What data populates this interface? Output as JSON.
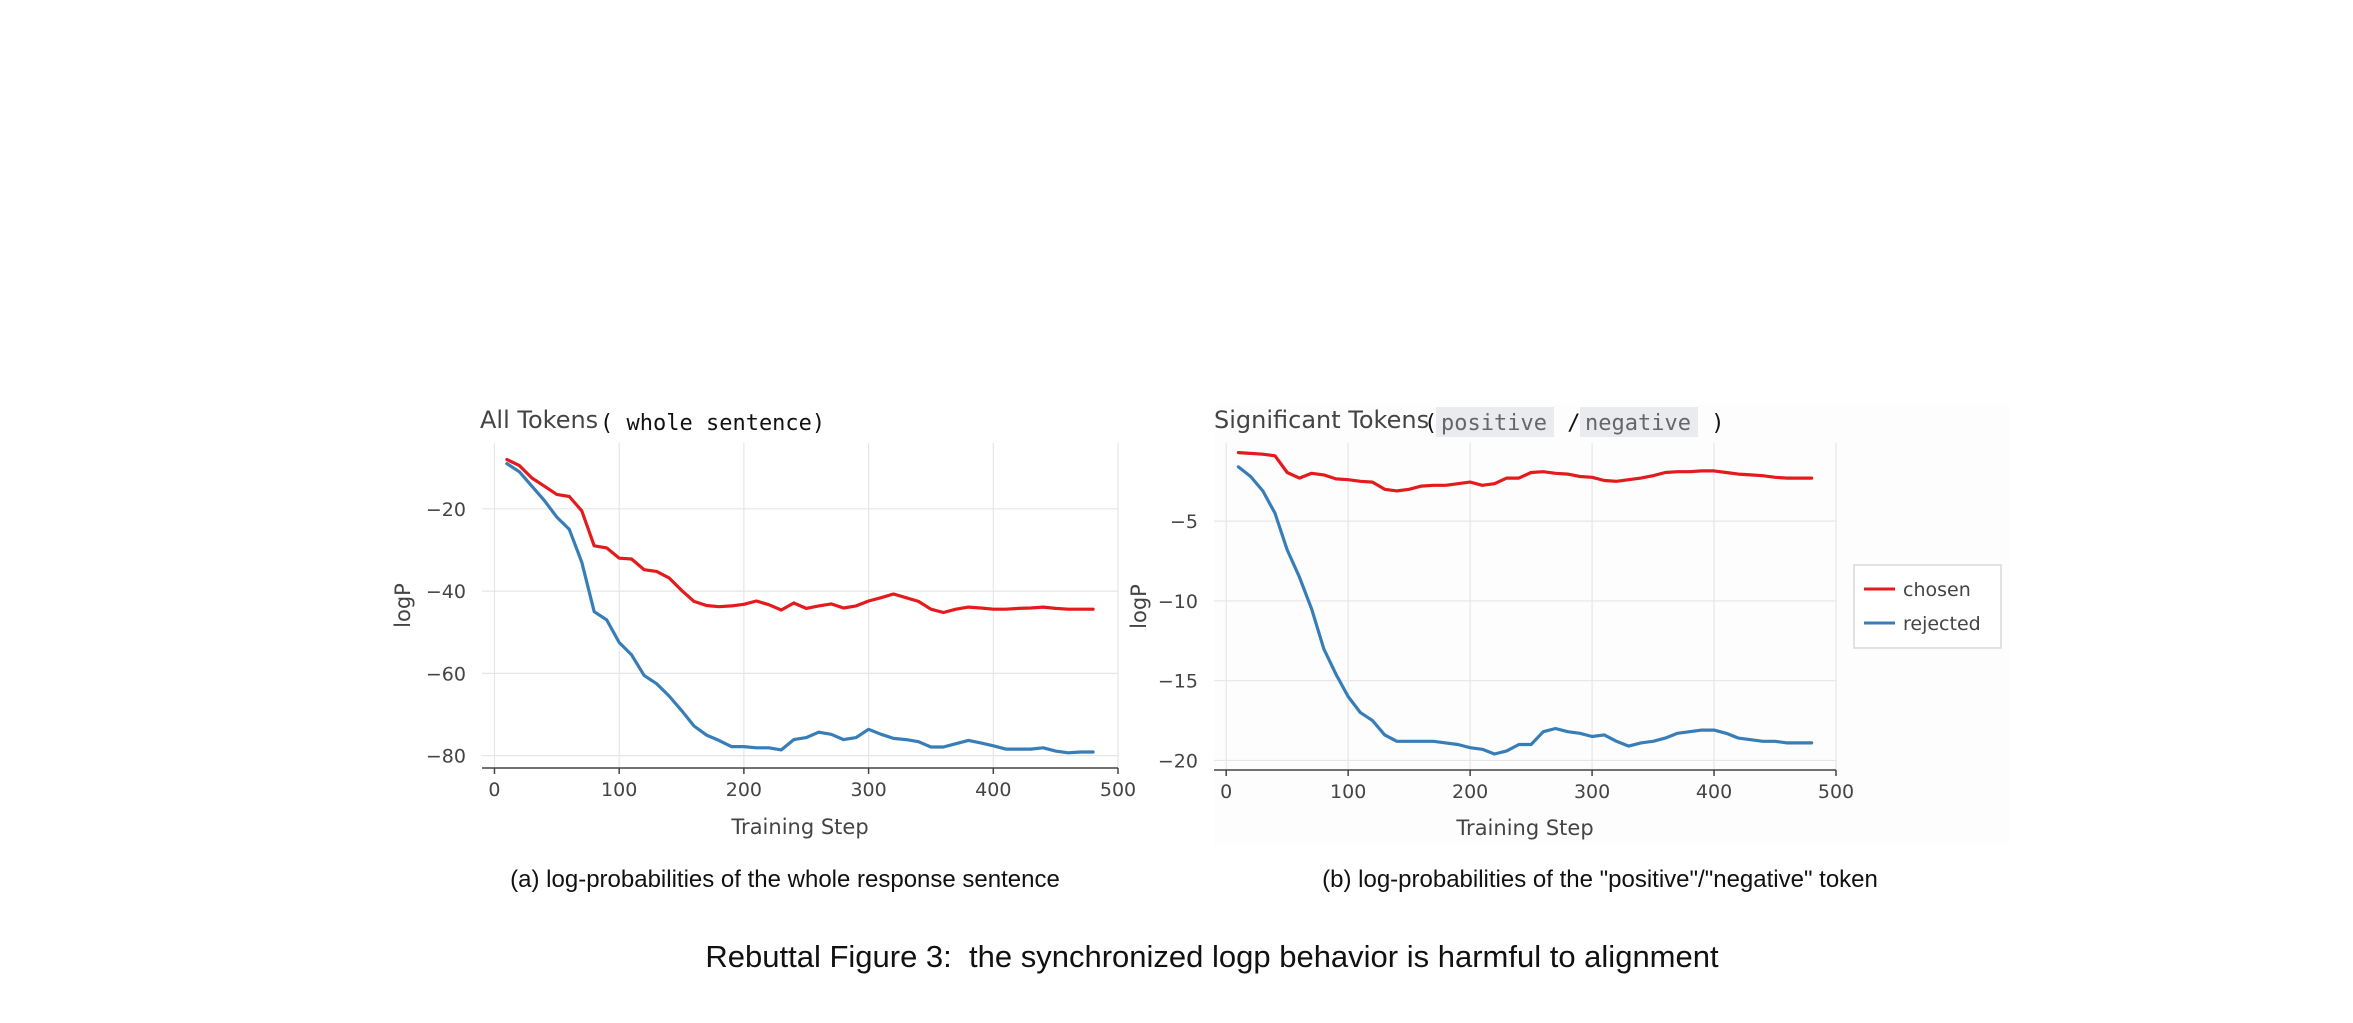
{
  "figure_title": "Rebuttal Figure 3:  the synchronized logp behavior is harmful to alignment",
  "colors": {
    "chosen": "#e41a1c",
    "rejected": "#377eb8"
  },
  "chart_data": [
    {
      "type": "line",
      "title": "All Tokens",
      "title_mono": "( whole sentence)",
      "caption": "(a) log-probabilities of the whole response sentence",
      "xlabel": "Training Step",
      "ylabel": "logP",
      "xlim": [
        -10,
        500
      ],
      "ylim": [
        -83,
        -4
      ],
      "xticks": [
        0,
        100,
        200,
        300,
        400,
        500
      ],
      "xtick_labels": [
        "0",
        "100",
        "200",
        "300",
        "400",
        "500"
      ],
      "yticks": [
        -20,
        -40,
        -60,
        -80
      ],
      "ytick_labels": [
        "−20",
        "−40",
        "−60",
        "−80"
      ],
      "grid": true,
      "legend": "none",
      "x": [
        10,
        20,
        30,
        40,
        50,
        60,
        70,
        80,
        90,
        100,
        110,
        120,
        130,
        140,
        150,
        160,
        170,
        180,
        190,
        200,
        210,
        220,
        230,
        240,
        250,
        260,
        270,
        280,
        290,
        300,
        310,
        320,
        330,
        340,
        350,
        360,
        370,
        380,
        390,
        400,
        410,
        420,
        430,
        440,
        450,
        460,
        470,
        480
      ],
      "series": [
        {
          "name": "chosen",
          "values": [
            -8,
            -9.5,
            -12.5,
            -14.5,
            -16.5,
            -17,
            -20.5,
            -29,
            -29.5,
            -32,
            -32.2,
            -34.8,
            -35.2,
            -36.8,
            -39.8,
            -42.5,
            -43.5,
            -43.8,
            -43.6,
            -43.2,
            -42.4,
            -43.3,
            -44.6,
            -42.9,
            -44.2,
            -43.6,
            -43.1,
            -44.1,
            -43.6,
            -42.4,
            -41.6,
            -40.7,
            -41.6,
            -42.5,
            -44.4,
            -45.2,
            -44.4,
            -43.9,
            -44.1,
            -44.4,
            -44.4,
            -44.2,
            -44.1,
            -43.9,
            -44.2,
            -44.4,
            -44.4,
            -44.4
          ]
        },
        {
          "name": "rejected",
          "values": [
            -9,
            -11,
            -14.5,
            -18,
            -22,
            -25,
            -33,
            -45,
            -47,
            -52.5,
            -55.5,
            -60.5,
            -62.5,
            -65.5,
            -69,
            -72.8,
            -75,
            -76.3,
            -77.8,
            -77.8,
            -78.1,
            -78.1,
            -78.6,
            -76.1,
            -75.6,
            -74.3,
            -74.8,
            -76.1,
            -75.6,
            -73.6,
            -74.8,
            -75.8,
            -76.1,
            -76.6,
            -77.9,
            -77.9,
            -77.1,
            -76.3,
            -76.9,
            -77.6,
            -78.4,
            -78.4,
            -78.4,
            -78.1,
            -78.9,
            -79.3,
            -79.1,
            -79.1
          ]
        }
      ]
    },
    {
      "type": "line",
      "title": "Significant Tokens",
      "title_paren_open": "(",
      "title_tag1": "positive",
      "title_sep": " / ",
      "title_tag2": "negative",
      "title_paren_close": " )",
      "caption": "(b) log-probabilities of the \"positive\"/\"negative\" token",
      "xlabel": "Training Step",
      "ylabel": "logP",
      "xlim": [
        -10,
        500
      ],
      "ylim": [
        -20.6,
        -0.1
      ],
      "xticks": [
        0,
        100,
        200,
        300,
        400,
        500
      ],
      "xtick_labels": [
        "0",
        "100",
        "200",
        "300",
        "400",
        "500"
      ],
      "yticks": [
        -5,
        -10,
        -15,
        -20
      ],
      "ytick_labels": [
        "−5",
        "−10",
        "−15",
        "−20"
      ],
      "grid": true,
      "legend": "right",
      "legend_entries": [
        "chosen",
        "rejected"
      ],
      "x": [
        10,
        20,
        30,
        40,
        50,
        60,
        70,
        80,
        90,
        100,
        110,
        120,
        130,
        140,
        150,
        160,
        170,
        180,
        190,
        200,
        210,
        220,
        230,
        240,
        250,
        260,
        270,
        280,
        290,
        300,
        310,
        320,
        330,
        340,
        350,
        360,
        370,
        380,
        390,
        400,
        410,
        420,
        430,
        440,
        450,
        460,
        470,
        480
      ],
      "series": [
        {
          "name": "chosen",
          "values": [
            -0.7,
            -0.75,
            -0.8,
            -0.9,
            -1.95,
            -2.3,
            -2.0,
            -2.1,
            -2.35,
            -2.4,
            -2.5,
            -2.55,
            -3.0,
            -3.1,
            -3.0,
            -2.8,
            -2.75,
            -2.75,
            -2.65,
            -2.55,
            -2.75,
            -2.65,
            -2.3,
            -2.3,
            -1.95,
            -1.9,
            -2.0,
            -2.05,
            -2.2,
            -2.25,
            -2.45,
            -2.5,
            -2.4,
            -2.3,
            -2.15,
            -1.95,
            -1.9,
            -1.9,
            -1.85,
            -1.85,
            -1.95,
            -2.05,
            -2.1,
            -2.15,
            -2.25,
            -2.3,
            -2.3,
            -2.3
          ]
        },
        {
          "name": "rejected",
          "values": [
            -1.6,
            -2.2,
            -3.1,
            -4.5,
            -6.8,
            -8.5,
            -10.5,
            -13.0,
            -14.6,
            -16.0,
            -17.0,
            -17.5,
            -18.4,
            -18.8,
            -18.8,
            -18.8,
            -18.8,
            -18.9,
            -19.0,
            -19.2,
            -19.3,
            -19.6,
            -19.4,
            -19.0,
            -19.0,
            -18.2,
            -18.0,
            -18.2,
            -18.3,
            -18.5,
            -18.4,
            -18.8,
            -19.1,
            -18.9,
            -18.8,
            -18.6,
            -18.3,
            -18.2,
            -18.1,
            -18.1,
            -18.3,
            -18.6,
            -18.7,
            -18.8,
            -18.8,
            -18.9,
            -18.9,
            -18.9
          ]
        }
      ]
    }
  ]
}
